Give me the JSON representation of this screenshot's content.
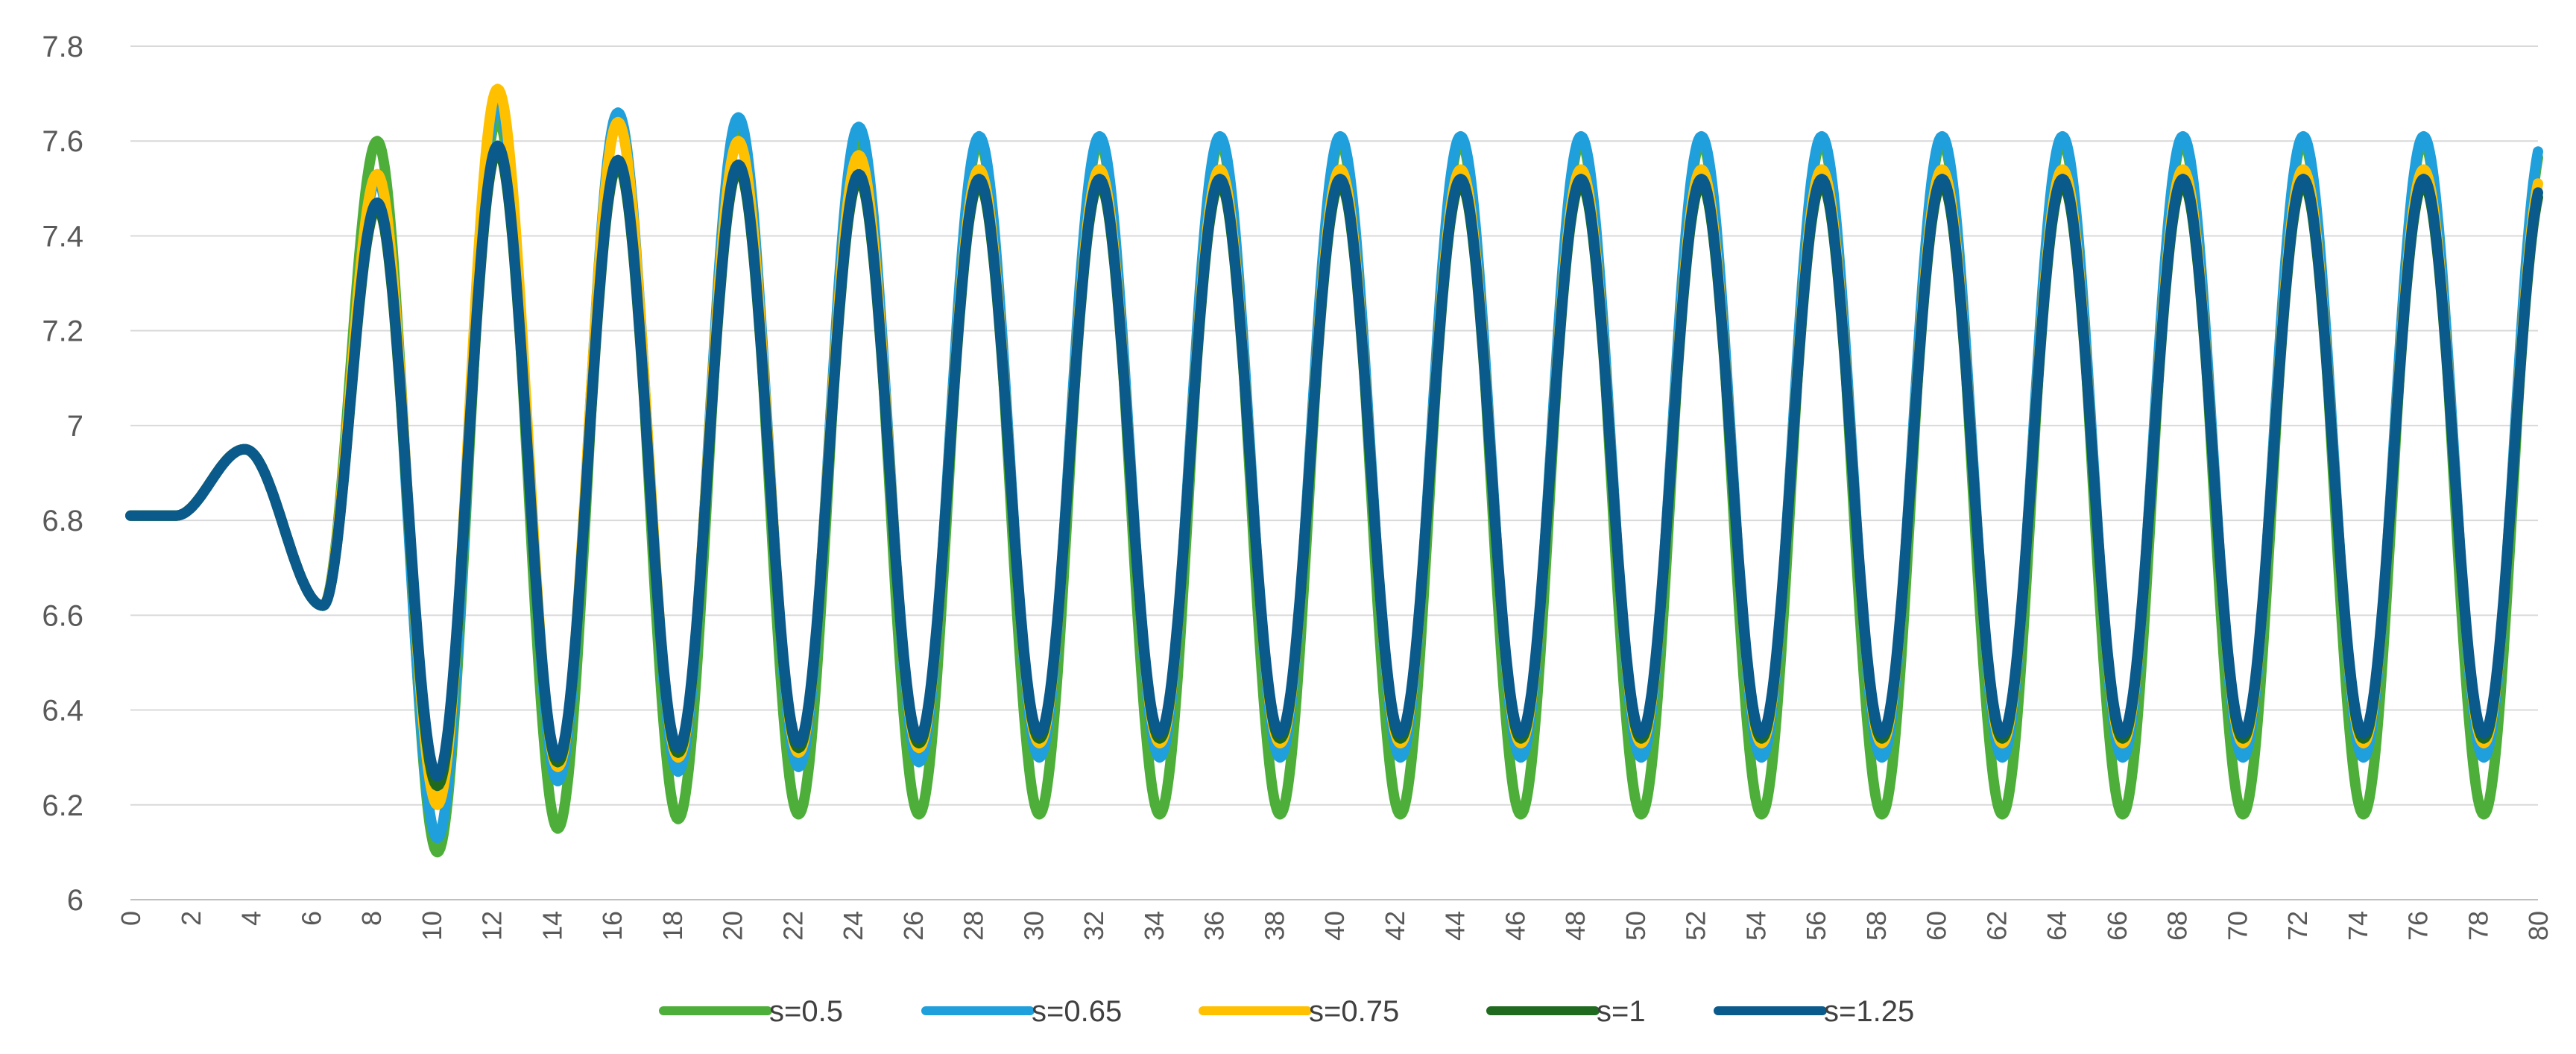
{
  "chart_data": {
    "type": "line",
    "title": "",
    "xlabel": "",
    "ylabel": "",
    "xlim": [
      0,
      80
    ],
    "ylim": [
      6,
      7.8
    ],
    "x_ticks": [
      "0",
      "2",
      "4",
      "6",
      "8",
      "10",
      "12",
      "14",
      "16",
      "18",
      "20",
      "22",
      "24",
      "26",
      "28",
      "30",
      "32",
      "34",
      "36",
      "38",
      "40",
      "42",
      "44",
      "46",
      "48",
      "50",
      "52",
      "54",
      "56",
      "58",
      "60",
      "62",
      "64",
      "66",
      "68",
      "70",
      "72",
      "74",
      "76",
      "78",
      "80"
    ],
    "y_ticks": [
      "6",
      "6.2",
      "6.4",
      "6.6",
      "6.8",
      "7",
      "7.2",
      "7.4",
      "7.6",
      "7.8"
    ],
    "grid": "horizontal",
    "legend_position": "bottom",
    "waveform": {
      "initial_value": 6.81,
      "bump_peak": {
        "x": 3.8,
        "y": 6.95
      },
      "dip": {
        "x": 6.4,
        "y": 6.62
      },
      "period": 4,
      "first_peak_x": 8.2
    },
    "series": [
      {
        "name": "s=0.5",
        "color": "#4eae3a",
        "stroke": 14,
        "peaks": [
          7.6,
          7.65,
          7.65,
          7.62,
          7.61,
          7.6
        ],
        "troughs": [
          6.1,
          6.15,
          6.17,
          6.18,
          6.18,
          6.18
        ]
      },
      {
        "name": "s=0.65",
        "color": "#1f9fdb",
        "stroke": 14,
        "peaks": [
          7.52,
          7.68,
          7.66,
          7.65,
          7.63,
          7.61
        ],
        "troughs": [
          6.13,
          6.25,
          6.27,
          6.28,
          6.29,
          6.3
        ]
      },
      {
        "name": "s=0.75",
        "color": "#ffc000",
        "stroke": 14,
        "peaks": [
          7.53,
          7.71,
          7.64,
          7.6,
          7.57,
          7.54
        ],
        "troughs": [
          6.2,
          6.28,
          6.3,
          6.31,
          6.32,
          6.33
        ]
      },
      {
        "name": "s=1",
        "color": "#1f6a1f",
        "stroke": 14,
        "peaks": [
          7.46,
          7.58,
          7.55,
          7.54,
          7.52,
          7.51
        ],
        "troughs": [
          6.24,
          6.29,
          6.31,
          6.32,
          6.33,
          6.34
        ]
      },
      {
        "name": "s=1.25",
        "color": "#0a5a8c",
        "stroke": 14,
        "peaks": [
          7.47,
          7.59,
          7.56,
          7.55,
          7.53,
          7.52
        ],
        "troughs": [
          6.26,
          6.3,
          6.32,
          6.33,
          6.34,
          6.35
        ]
      }
    ]
  }
}
